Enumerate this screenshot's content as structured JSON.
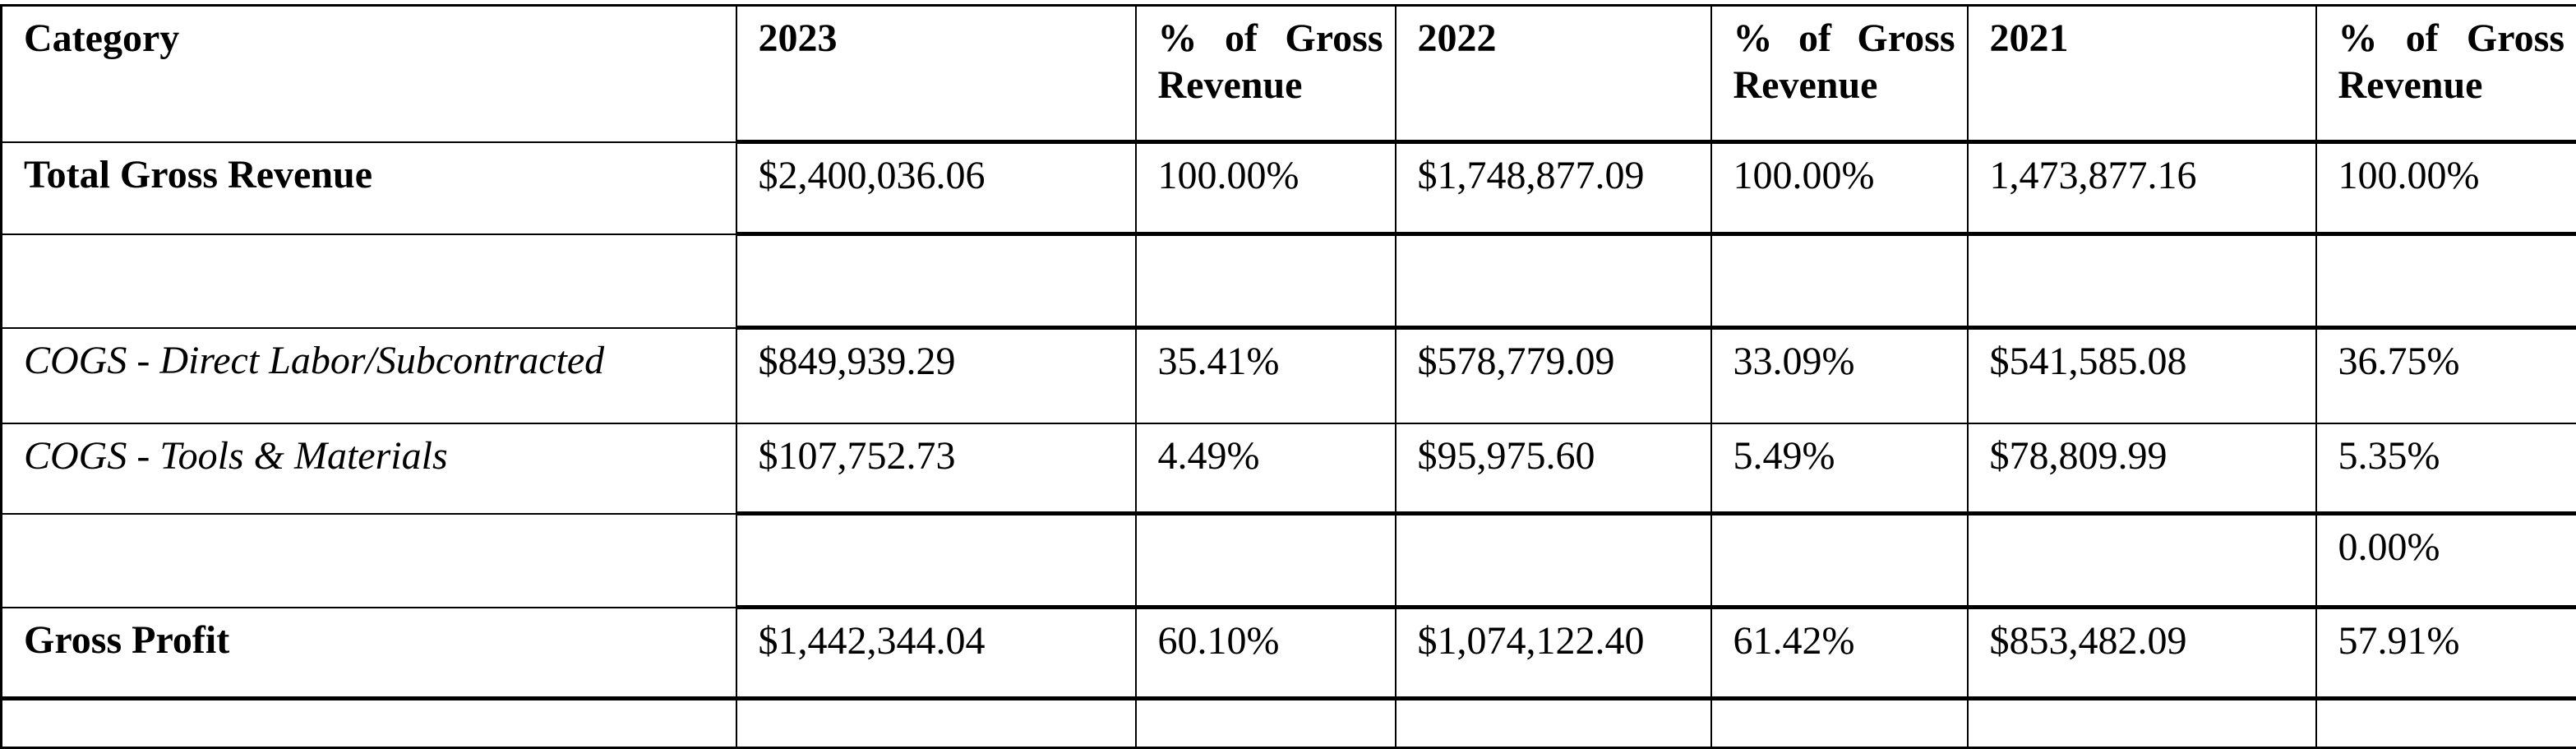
{
  "table": {
    "columns": [
      "Category",
      "2023",
      "% of Gross Revenue",
      "2022",
      "% of Gross Revenue",
      "2021",
      "% of Gross Revenue"
    ],
    "rows": [
      {
        "category": "Total Gross Revenue",
        "values": [
          "$2,400,036.06",
          "100.00%",
          "$1,748,877.09",
          "100.00%",
          "1,473,877.16",
          "100.00%"
        ]
      },
      {
        "category": "",
        "values": [
          "",
          "",
          "",
          "",
          "",
          ""
        ]
      },
      {
        "category": "COGS - Direct Labor/Subcontracted",
        "values": [
          "$849,939.29",
          "35.41%",
          "$578,779.09",
          "33.09%",
          "$541,585.08",
          "36.75%"
        ]
      },
      {
        "category": "COGS - Tools & Materials",
        "values": [
          "$107,752.73",
          "4.49%",
          "$95,975.60",
          "5.49%",
          "$78,809.99",
          "5.35%"
        ]
      },
      {
        "category": "",
        "values": [
          "",
          "",
          "",
          "",
          "",
          "0.00%"
        ]
      },
      {
        "category": "Gross Profit",
        "values": [
          "$1,442,344.04",
          "60.10%",
          "$1,074,122.40",
          "61.42%",
          "$853,482.09",
          "57.91%"
        ]
      }
    ]
  }
}
